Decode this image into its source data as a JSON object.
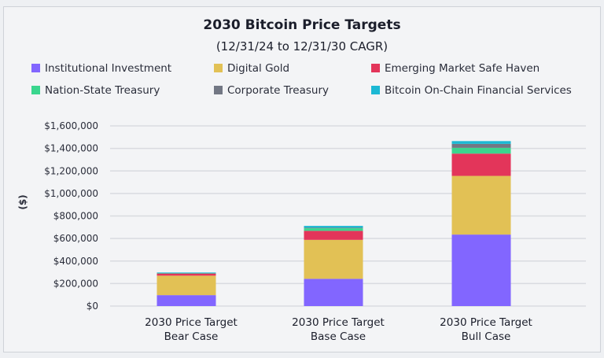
{
  "chart_data": {
    "type": "bar",
    "stacked": true,
    "title": "2030 Bitcoin Price Targets",
    "subtitle": "(12/31/24 to 12/31/30 CAGR)",
    "xlabel": "",
    "ylabel": "($)",
    "ylim": [
      0,
      1600000
    ],
    "grid": true,
    "legend_position": "top",
    "yticks": [
      "$0",
      "$200,000",
      "$400,000",
      "$600,000",
      "$800,000",
      "$1,000,000",
      "$1,200,000",
      "$1,400,000",
      "$1,600,000"
    ],
    "categories": [
      [
        "2030 Price Target",
        "Bear Case"
      ],
      [
        "2030 Price Target",
        "Base Case"
      ],
      [
        "2030 Price Target",
        "Bull Case"
      ]
    ],
    "series": [
      {
        "name": "Institutional Investment",
        "color": "#8266ff",
        "values": [
          97000,
          242000,
          635000
        ]
      },
      {
        "name": "Digital Gold",
        "color": "#e2c155",
        "values": [
          173000,
          346000,
          521000
        ]
      },
      {
        "name": "Emerging Market Safe Haven",
        "color": "#e3355a",
        "values": [
          18000,
          80000,
          198000
        ]
      },
      {
        "name": "Nation-State Treasury",
        "color": "#3ad68e",
        "values": [
          3000,
          23000,
          51000
        ]
      },
      {
        "name": "Corporate Treasury",
        "color": "#727784",
        "values": [
          2000,
          5000,
          35000
        ]
      },
      {
        "name": "Bitcoin On-Chain Financial Services",
        "color": "#1cb8d4",
        "values": [
          5000,
          16000,
          25000
        ]
      }
    ]
  }
}
